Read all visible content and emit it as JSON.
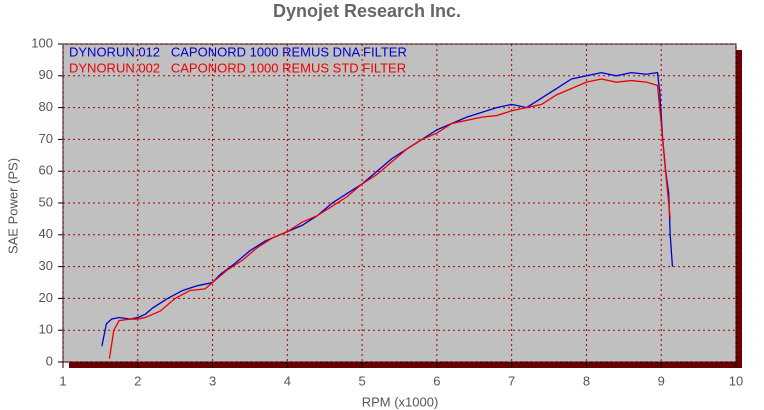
{
  "chart_data": {
    "type": "line",
    "title": "Dynojet Research Inc.",
    "x_label": "RPM (x1000)",
    "y_label": "SAE Power (PS)",
    "xlim": [
      1,
      10
    ],
    "xticks": [
      1,
      2,
      3,
      4,
      5,
      6,
      7,
      8,
      9,
      10
    ],
    "ylim": [
      0,
      100
    ],
    "yticks": [
      0,
      10,
      20,
      30,
      40,
      50,
      60,
      70,
      80,
      90,
      100
    ],
    "grid": true,
    "series": [
      {
        "name": "DYNORUN.012   CAPONORD 1000 REMUS DNA FILTER",
        "color": "#0000cc",
        "x": [
          1.52,
          1.58,
          1.65,
          1.75,
          1.9,
          2.0,
          2.1,
          2.2,
          2.4,
          2.6,
          2.8,
          3.0,
          3.1,
          3.3,
          3.5,
          3.7,
          4.0,
          4.2,
          4.4,
          4.6,
          4.8,
          5.0,
          5.2,
          5.4,
          5.6,
          5.8,
          6.0,
          6.2,
          6.4,
          6.6,
          6.8,
          7.0,
          7.2,
          7.4,
          7.6,
          7.8,
          8.0,
          8.2,
          8.4,
          8.6,
          8.8,
          8.95,
          8.98,
          9.02,
          9.06,
          9.1,
          9.12,
          9.15
        ],
        "values": [
          5,
          12,
          13.5,
          14,
          13.5,
          14,
          15,
          17,
          20,
          22.5,
          24,
          25,
          27.5,
          31,
          35,
          38,
          41,
          43,
          46,
          50,
          53,
          56,
          60,
          64,
          67,
          70,
          73,
          75,
          77,
          78.5,
          80,
          81,
          80,
          83,
          86,
          89,
          90,
          91,
          90,
          91,
          90.5,
          91,
          85,
          70,
          60,
          53,
          40,
          30
        ]
      },
      {
        "name": "DYNORUN.002   CAPONORD 1000 REMUS STD FILTER",
        "color": "#ee0000",
        "x": [
          1.62,
          1.68,
          1.75,
          1.9,
          2.0,
          2.1,
          2.3,
          2.5,
          2.7,
          2.9,
          3.0,
          3.2,
          3.4,
          3.6,
          3.8,
          4.0,
          4.2,
          4.4,
          4.6,
          4.8,
          5.0,
          5.2,
          5.4,
          5.6,
          5.8,
          6.0,
          6.2,
          6.4,
          6.6,
          6.8,
          7.0,
          7.2,
          7.4,
          7.6,
          7.8,
          8.0,
          8.2,
          8.4,
          8.6,
          8.8,
          8.95,
          9.0,
          9.05,
          9.1,
          9.12
        ],
        "values": [
          1,
          10,
          13,
          13.5,
          13.5,
          14,
          16,
          20,
          22.5,
          23,
          25,
          29,
          32,
          36,
          39,
          41,
          44,
          46,
          49,
          52,
          56,
          59,
          63,
          67,
          70,
          72,
          75,
          76,
          77,
          77.5,
          79,
          80,
          81,
          84,
          86,
          88,
          89,
          88,
          88.5,
          88,
          87,
          75,
          62,
          50,
          45
        ]
      }
    ]
  }
}
